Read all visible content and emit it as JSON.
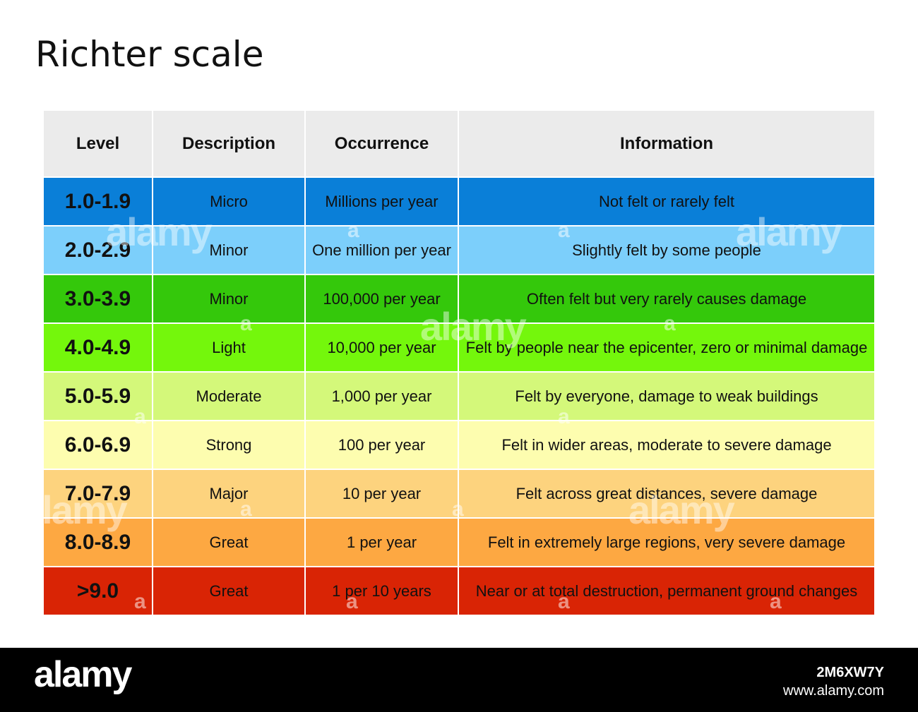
{
  "title": "Richter scale",
  "table": {
    "headers": [
      "Level",
      "Description",
      "Occurrence",
      "Information"
    ],
    "rows": [
      {
        "level": "1.0-1.9",
        "description": "Micro",
        "occurrence": "Millions per year",
        "information": "Not felt or rarely felt",
        "color": "#0a7fd8"
      },
      {
        "level": "2.0-2.9",
        "description": "Minor",
        "occurrence": "One million per year",
        "information": "Slightly felt by some people",
        "color": "#7ccffb"
      },
      {
        "level": "3.0-3.9",
        "description": "Minor",
        "occurrence": "100,000 per year",
        "information": "Often felt but very rarely causes damage",
        "color": "#34c80b"
      },
      {
        "level": "4.0-4.9",
        "description": "Light",
        "occurrence": "10,000 per year",
        "information": "Felt by people near the epicenter, zero or minimal damage",
        "color": "#74f70c"
      },
      {
        "level": "5.0-5.9",
        "description": "Moderate",
        "occurrence": "1,000 per year",
        "information": "Felt by everyone, damage to weak buildings",
        "color": "#d4f87a"
      },
      {
        "level": "6.0-6.9",
        "description": "Strong",
        "occurrence": "100 per year",
        "information": "Felt in wider areas, moderate to severe damage",
        "color": "#fdfdaf"
      },
      {
        "level": "7.0-7.9",
        "description": "Major",
        "occurrence": "10 per year",
        "information": "Felt across great distances, severe damage",
        "color": "#fdd37e"
      },
      {
        "level": "8.0-8.9",
        "description": "Great",
        "occurrence": "1 per year",
        "information": "Felt in extremely large regions, very severe damage",
        "color": "#fda842"
      },
      {
        "level": ">9.0",
        "description": "Great",
        "occurrence": "1 per 10 years",
        "information": "Near or at total destruction, permanent ground changes",
        "color": "#d92405"
      }
    ]
  },
  "watermark": {
    "text": "alamy",
    "letter": "a"
  },
  "footer": {
    "logo": "alamy",
    "image_id": "2M6XW7Y",
    "site": "www.alamy.com"
  }
}
